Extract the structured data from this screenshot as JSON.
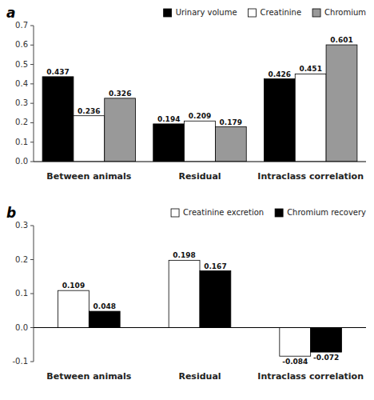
{
  "chart_data": [
    {
      "type": "bar",
      "title": "a",
      "categories": [
        "Between animals",
        "Residual",
        "Intraclass correlation"
      ],
      "series": [
        {
          "name": "Urinary volume",
          "color": "#000000",
          "values": [
            0.437,
            0.194,
            0.426
          ]
        },
        {
          "name": "Creatinine",
          "color": "#ffffff",
          "values": [
            0.236,
            0.209,
            0.451
          ]
        },
        {
          "name": "Chromium",
          "color": "#999999",
          "values": [
            0.326,
            0.179,
            0.601
          ]
        }
      ],
      "ylim": [
        0.0,
        0.7
      ],
      "yticks": [
        {
          "value": 0,
          "label": "0.0"
        },
        0.1,
        0.2,
        0.3,
        0.4,
        0.5,
        0.6,
        0.7
      ],
      "data_labels": true,
      "legend": "upper right",
      "grid": false
    },
    {
      "type": "bar",
      "title": "b",
      "categories": [
        "Between animals",
        "Residual",
        "Intraclass correlation"
      ],
      "series": [
        {
          "name": "Creatinine excretion",
          "color": "#ffffff",
          "values": [
            0.109,
            0.198,
            -0.084
          ]
        },
        {
          "name": "Chromium recovery",
          "color": "#000000",
          "values": [
            0.048,
            0.167,
            -0.072
          ]
        }
      ],
      "ylim": [
        -0.1,
        0.3
      ],
      "yticks": [
        -0.1,
        {
          "value": 0,
          "label": "0.0"
        },
        0.1,
        0.2,
        0.3
      ],
      "data_labels": true,
      "legend": "upper right",
      "grid": false
    }
  ]
}
